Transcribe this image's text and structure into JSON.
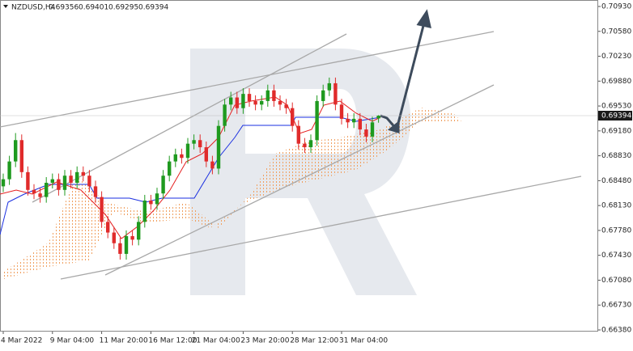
{
  "chart_data": {
    "type": "candlestick",
    "title": "NZDUSD,H4",
    "categories": [
      "4 Mar 2022",
      null,
      null,
      null,
      null,
      null,
      null,
      null,
      "9 Mar 04:00",
      null,
      null,
      null,
      null,
      null,
      null,
      null,
      "11 Mar 20:00",
      null,
      null,
      null,
      null,
      null,
      null,
      null,
      "16 Mar 12:00",
      null,
      null,
      null,
      null,
      null,
      null,
      "21 Mar 04:00",
      null,
      null,
      null,
      null,
      null,
      null,
      null,
      "23 Mar 20:00",
      null,
      null,
      null,
      null,
      null,
      null,
      null,
      "28 Mar 12:00",
      null,
      null,
      null,
      null,
      null,
      null,
      null,
      "31 Mar 04:00",
      null,
      null,
      null,
      null,
      null,
      null
    ],
    "open": [
      0.684,
      0.685,
      0.6875,
      0.6905,
      0.686,
      0.6835,
      0.683,
      0.6825,
      0.6845,
      0.685,
      0.6835,
      0.6855,
      0.6845,
      0.686,
      0.6855,
      0.684,
      0.6825,
      0.679,
      0.6775,
      0.676,
      0.6745,
      0.677,
      0.6765,
      0.679,
      0.682,
      0.6815,
      0.683,
      0.6855,
      0.6875,
      0.6885,
      0.688,
      0.69,
      0.6905,
      0.6895,
      0.6875,
      0.6865,
      0.6925,
      0.6955,
      0.6965,
      0.695,
      0.697,
      0.696,
      0.6955,
      0.696,
      0.6975,
      0.696,
      0.6955,
      0.695,
      0.6925,
      0.69,
      0.6895,
      0.6905,
      0.696,
      0.6975,
      0.6985,
      0.6955,
      0.6935,
      0.693,
      0.6935,
      0.692,
      0.691,
      0.69356
    ],
    "high": [
      0.6858,
      0.6883,
      0.6915,
      0.6913,
      0.6868,
      0.6843,
      0.6838,
      0.6853,
      0.6858,
      0.6858,
      0.6863,
      0.6863,
      0.6868,
      0.6868,
      0.6863,
      0.6848,
      0.6833,
      0.6798,
      0.6783,
      0.6768,
      0.6778,
      0.6778,
      0.6798,
      0.6828,
      0.6828,
      0.6838,
      0.6863,
      0.6883,
      0.6893,
      0.6893,
      0.6908,
      0.6913,
      0.6913,
      0.6903,
      0.6883,
      0.6933,
      0.6963,
      0.6973,
      0.6973,
      0.6978,
      0.6978,
      0.6968,
      0.6968,
      0.6983,
      0.6983,
      0.6968,
      0.6963,
      0.6958,
      0.6933,
      0.6908,
      0.6913,
      0.6968,
      0.6983,
      0.6993,
      0.6993,
      0.6963,
      0.6943,
      0.6943,
      0.6943,
      0.6928,
      0.6938,
      0.69401
    ],
    "low": [
      0.6832,
      0.6842,
      0.6867,
      0.6852,
      0.6827,
      0.6822,
      0.6817,
      0.6817,
      0.6837,
      0.6827,
      0.6827,
      0.6837,
      0.6837,
      0.6847,
      0.6832,
      0.6817,
      0.6782,
      0.6767,
      0.6752,
      0.6737,
      0.6737,
      0.6757,
      0.6757,
      0.6782,
      0.6807,
      0.6807,
      0.6822,
      0.6847,
      0.6867,
      0.6872,
      0.6872,
      0.6892,
      0.6887,
      0.6867,
      0.6857,
      0.6857,
      0.6917,
      0.6947,
      0.6942,
      0.6942,
      0.6952,
      0.6947,
      0.6947,
      0.6952,
      0.6952,
      0.6947,
      0.6942,
      0.6917,
      0.6892,
      0.6887,
      0.6887,
      0.6897,
      0.6952,
      0.6967,
      0.6947,
      0.6927,
      0.6922,
      0.6922,
      0.6912,
      0.6902,
      0.6902,
      0.69295
    ],
    "close": [
      0.685,
      0.6875,
      0.6905,
      0.686,
      0.6835,
      0.683,
      0.6825,
      0.6845,
      0.685,
      0.6835,
      0.6855,
      0.6845,
      0.686,
      0.6855,
      0.684,
      0.6825,
      0.679,
      0.6775,
      0.676,
      0.6745,
      0.677,
      0.6765,
      0.679,
      0.682,
      0.6815,
      0.683,
      0.6855,
      0.6875,
      0.6885,
      0.688,
      0.69,
      0.6905,
      0.6895,
      0.6875,
      0.6865,
      0.6925,
      0.6955,
      0.6965,
      0.695,
      0.697,
      0.696,
      0.6955,
      0.696,
      0.6975,
      0.696,
      0.6955,
      0.695,
      0.6925,
      0.69,
      0.6895,
      0.6905,
      0.696,
      0.6975,
      0.6985,
      0.6955,
      0.6935,
      0.693,
      0.6935,
      0.692,
      0.691,
      0.693,
      0.69394
    ],
    "up_color": "#1f9a1f",
    "down_color": "#e02b2b",
    "ylim": [
      0.66357,
      0.71021
    ],
    "yticks": [
      {
        "value": 0.7093,
        "label": "0.70930"
      },
      {
        "value": 0.7058,
        "label": "0.70580"
      },
      {
        "value": 0.7023,
        "label": "0.70230"
      },
      {
        "value": 0.6988,
        "label": "0.69880"
      },
      {
        "value": 0.6953,
        "label": "0.69530"
      },
      {
        "value": 0.6918,
        "label": "0.69180"
      },
      {
        "value": 0.6883,
        "label": "0.68830"
      },
      {
        "value": 0.6848,
        "label": "0.68480"
      },
      {
        "value": 0.6813,
        "label": "0.68130"
      },
      {
        "value": 0.6778,
        "label": "0.67780"
      },
      {
        "value": 0.6743,
        "label": "0.67430"
      },
      {
        "value": 0.6708,
        "label": "0.67080"
      },
      {
        "value": 0.6673,
        "label": "0.66730"
      },
      {
        "value": 0.6638,
        "label": "0.66380"
      }
    ]
  }
}
